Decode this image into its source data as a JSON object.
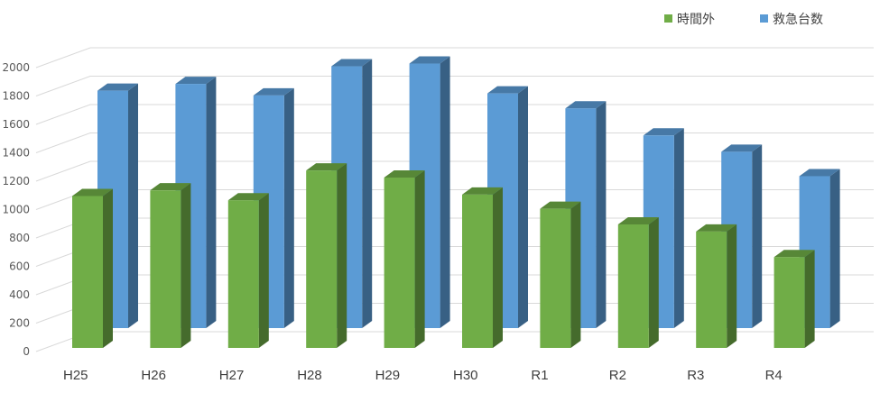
{
  "chart_data": {
    "type": "bar",
    "categories": [
      "H25",
      "H26",
      "H27",
      "H28",
      "H29",
      "H30",
      "R1",
      "R2",
      "R3",
      "R4"
    ],
    "series": [
      {
        "name": "救急台数",
        "values": [
          1750,
          1800,
          1715,
          1930,
          1950,
          1730,
          1620,
          1420,
          1300,
          1120
        ],
        "color": "#5b9bd5"
      },
      {
        "name": "時間外",
        "values": [
          1070,
          1110,
          1040,
          1250,
          1200,
          1080,
          980,
          870,
          820,
          640
        ],
        "color": "#70ad47"
      }
    ],
    "y_ticks": [
      "0",
      "200",
      "400",
      "600",
      "800",
      "1000",
      "1200",
      "1400",
      "1600",
      "1800",
      "2000"
    ],
    "ylim": [
      0,
      2000
    ],
    "grid": true,
    "legend": "top-right",
    "view": "3d-clustered-depth"
  }
}
